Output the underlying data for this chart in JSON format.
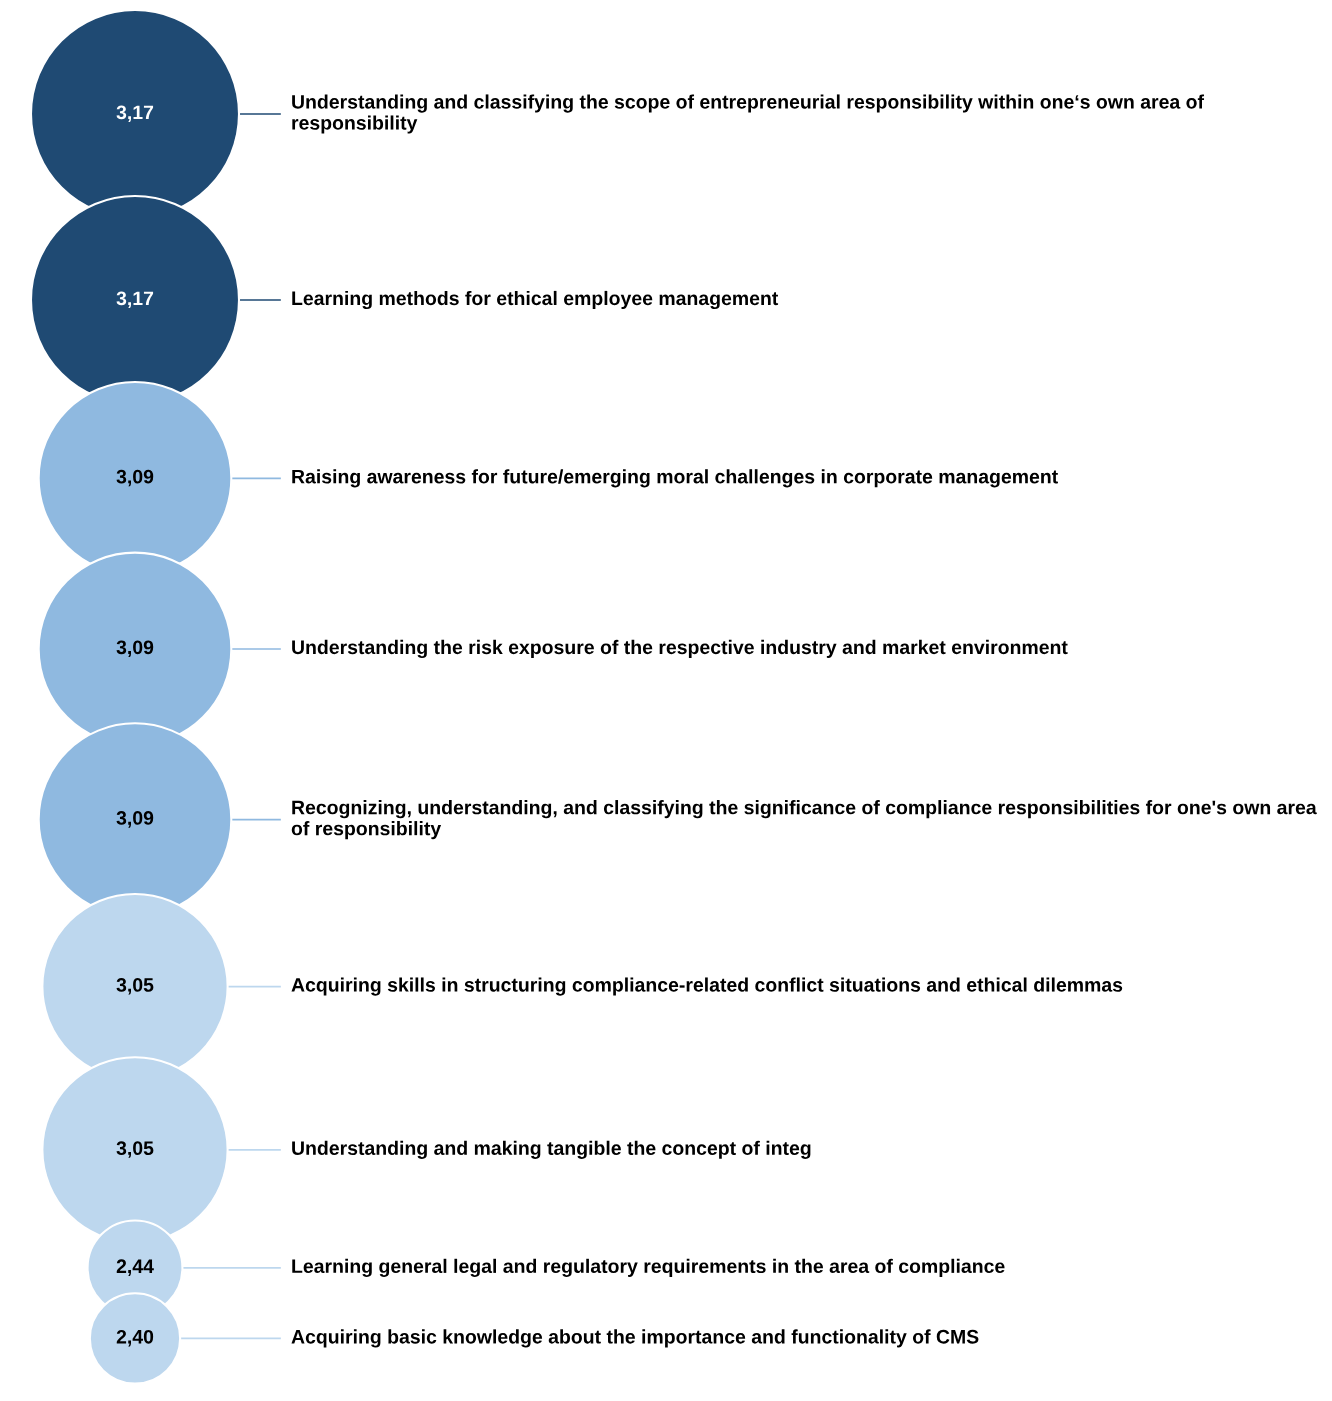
{
  "chart_data": {
    "type": "other",
    "data_labels": true,
    "categories": [
      "Understanding and classifying the scope of entrepreneurial responsibility within one‘s own area of responsibility",
      "Learning methods for ethical employee management",
      "Raising awareness for future/emerging moral challenges in corporate management",
      "Understanding the risk exposure of the respective industry and market environment",
      "Recognizing, understanding, and classifying the significance of compliance responsibilities for one's own area of responsibility",
      "Acquiring skills in structuring compliance-related conflict situations and ethical dilemmas",
      "Understanding and making tangible the concept of integ",
      "Learning general legal and regulatory requirements in the area of compliance",
      "Acquiring basic knowledge about the importance and functionality of CMS"
    ],
    "values": [
      3.17,
      3.17,
      3.09,
      3.09,
      3.09,
      3.05,
      3.05,
      2.44,
      2.4
    ],
    "value_labels": [
      "3,17",
      "3,17",
      "3,09",
      "3,09",
      "3,09",
      "3,05",
      "3,05",
      "2,44",
      "2,40"
    ],
    "colors": [
      "#1f4a73",
      "#1f4a73",
      "#8fb9e0",
      "#8fb9e0",
      "#8fb9e0",
      "#bdd7ee",
      "#bdd7ee",
      "#bdd7ee",
      "#bdd7ee"
    ]
  }
}
